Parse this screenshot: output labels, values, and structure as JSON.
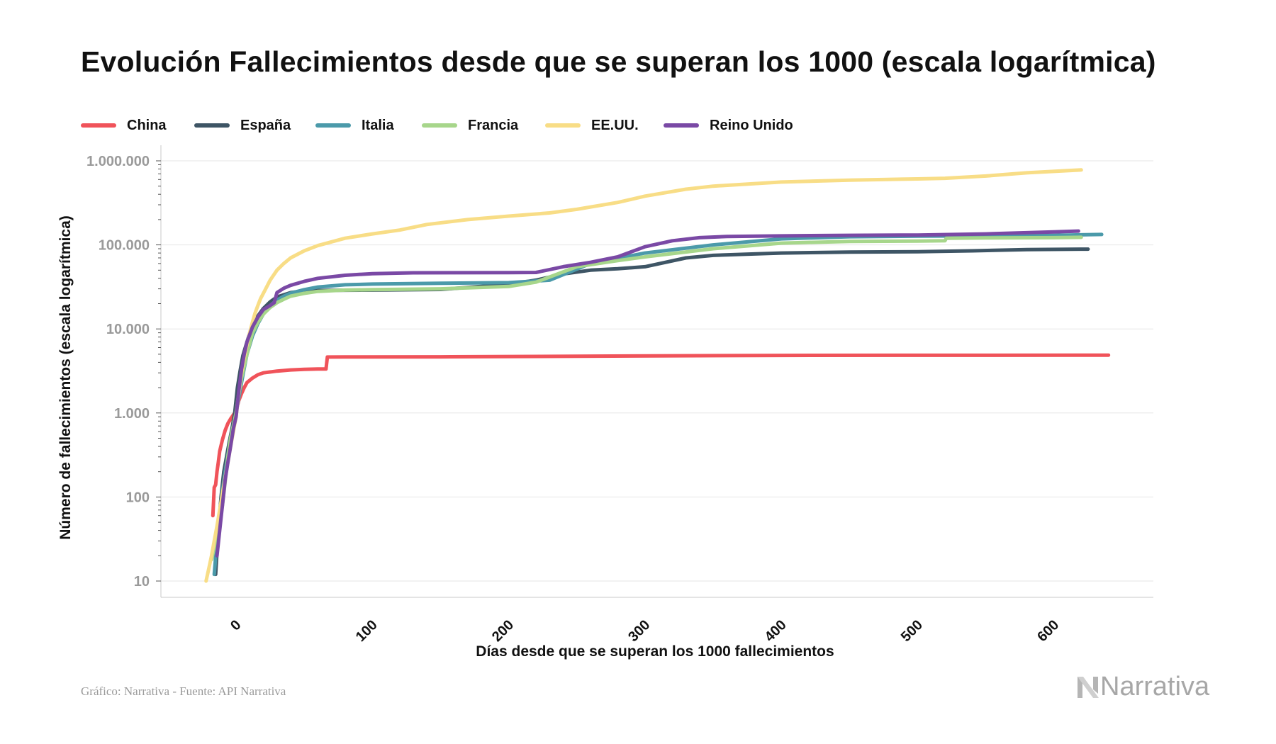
{
  "title": "Evolución Fallecimientos desde que se superan los 1000 (escala logarítmica)",
  "footer": "Gráfico: Narrativa - Fuente: API Narrativa",
  "logo_text": "Narrativa",
  "logo_icon": "narrativa-n-icon",
  "chart_data": {
    "type": "line",
    "xlabel": "Días desde que se superan los 1000 fallecimientos",
    "ylabel": "Número de fallecimientos (escala logarítmica)",
    "yscale": "log",
    "ylim": [
      7,
      1500000
    ],
    "xlim": [
      -55,
      675
    ],
    "xticks": [
      0,
      100,
      200,
      300,
      400,
      500,
      600
    ],
    "xtick_labels": [
      "0",
      "100",
      "200",
      "300",
      "400",
      "500",
      "600"
    ],
    "yticks": [
      10,
      100,
      1000,
      10000,
      100000,
      1000000
    ],
    "ytick_labels": [
      "10",
      "100",
      "1.000",
      "10.000",
      "100.000",
      "1.000.000"
    ],
    "grid": true,
    "legend_position": "top-left",
    "series": [
      {
        "name": "China",
        "color": "#f0535a",
        "x": [
          -17,
          -16,
          -15,
          -14,
          -13,
          -12,
          -10,
          -8,
          -6,
          -4,
          -2,
          0,
          2,
          4,
          6,
          8,
          12,
          16,
          20,
          30,
          40,
          50,
          60,
          66,
          67,
          80,
          150,
          250,
          400,
          500,
          640
        ],
        "y": [
          60,
          130,
          140,
          200,
          260,
          350,
          480,
          620,
          750,
          850,
          950,
          1050,
          1400,
          1700,
          2000,
          2300,
          2600,
          2850,
          3000,
          3150,
          3250,
          3300,
          3330,
          3340,
          4630,
          4640,
          4650,
          4740,
          4840,
          4860,
          4880
        ]
      },
      {
        "name": "España",
        "color": "#3e5565",
        "x": [
          -15,
          -13,
          -11,
          -9,
          -7,
          -5,
          -3,
          -1,
          1,
          3,
          5,
          8,
          11,
          15,
          20,
          25,
          30,
          40,
          50,
          70,
          100,
          150,
          200,
          220,
          240,
          260,
          280,
          300,
          330,
          350,
          380,
          400,
          450,
          500,
          540,
          580,
          625
        ],
        "y": [
          12,
          40,
          100,
          200,
          300,
          450,
          650,
          1000,
          2000,
          3200,
          4800,
          7000,
          10000,
          13500,
          17500,
          21000,
          24000,
          27000,
          28500,
          28800,
          29000,
          29500,
          34000,
          38000,
          45000,
          50000,
          52000,
          55000,
          70000,
          75000,
          78000,
          80000,
          82000,
          83000,
          85000,
          88000,
          89000
        ]
      },
      {
        "name": "Italia",
        "color": "#4b9aaa",
        "x": [
          -16,
          -14,
          -12,
          -10,
          -8,
          -6,
          -4,
          -2,
          0,
          2,
          4,
          6,
          8,
          12,
          16,
          20,
          25,
          30,
          35,
          40,
          50,
          60,
          80,
          100,
          150,
          200,
          230,
          260,
          300,
          350,
          400,
          450,
          500,
          550,
          600,
          635
        ],
        "y": [
          12,
          30,
          60,
          120,
          200,
          320,
          500,
          720,
          1000,
          1500,
          2300,
          3400,
          5000,
          8200,
          11600,
          15000,
          19000,
          22000,
          24500,
          26600,
          29300,
          31500,
          33500,
          34200,
          35000,
          35500,
          38000,
          60000,
          80000,
          100000,
          118000,
          125000,
          127000,
          128000,
          130000,
          133000
        ]
      },
      {
        "name": "Francia",
        "color": "#a7d68b",
        "x": [
          -18,
          -16,
          -14,
          -12,
          -10,
          -8,
          -6,
          -4,
          -2,
          0,
          2,
          4,
          6,
          8,
          12,
          16,
          20,
          25,
          30,
          35,
          40,
          50,
          60,
          80,
          100,
          150,
          200,
          220,
          250,
          280,
          300,
          350,
          400,
          450,
          500,
          520,
          521,
          550,
          600,
          620
        ],
        "y": [
          18,
          25,
          35,
          50,
          80,
          150,
          300,
          500,
          700,
          1000,
          1700,
          2600,
          3600,
          5000,
          8900,
          12000,
          15000,
          18000,
          20500,
          22500,
          24500,
          26500,
          28000,
          29000,
          29300,
          30000,
          32000,
          36000,
          55000,
          65000,
          72000,
          90000,
          105000,
          110000,
          111000,
          112000,
          120000,
          121000,
          122000,
          123000
        ]
      },
      {
        "name": "EE.UU.",
        "color": "#f8dd86",
        "x": [
          -22,
          -20,
          -18,
          -16,
          -14,
          -12,
          -10,
          -8,
          -6,
          -4,
          -2,
          0,
          2,
          4,
          6,
          8,
          10,
          12,
          14,
          16,
          18,
          20,
          25,
          30,
          35,
          40,
          50,
          60,
          80,
          100,
          120,
          140,
          170,
          200,
          230,
          250,
          280,
          300,
          330,
          350,
          400,
          450,
          500,
          520,
          550,
          580,
          620
        ],
        "y": [
          10,
          14,
          20,
          30,
          45,
          70,
          110,
          170,
          260,
          400,
          600,
          900,
          1700,
          3000,
          4500,
          6500,
          9000,
          12000,
          15500,
          19000,
          23000,
          26500,
          38000,
          50000,
          60000,
          70000,
          85000,
          98000,
          120000,
          135000,
          150000,
          175000,
          200000,
          220000,
          240000,
          265000,
          320000,
          380000,
          460000,
          500000,
          560000,
          590000,
          610000,
          620000,
          660000,
          720000,
          780000
        ]
      },
      {
        "name": "Reino Unido",
        "color": "#7a49a5",
        "x": [
          -14,
          -12,
          -10,
          -8,
          -6,
          -4,
          -2,
          0,
          2,
          4,
          6,
          8,
          12,
          16,
          20,
          25,
          28,
          30,
          35,
          40,
          50,
          60,
          80,
          100,
          130,
          160,
          200,
          220,
          240,
          260,
          280,
          300,
          320,
          340,
          360,
          400,
          450,
          500,
          550,
          600,
          618
        ],
        "y": [
          20,
          40,
          80,
          160,
          260,
          400,
          650,
          900,
          1800,
          3300,
          5000,
          7000,
          10500,
          13800,
          17000,
          19000,
          20500,
          27000,
          30500,
          33000,
          36800,
          40000,
          43500,
          45500,
          46500,
          46600,
          46800,
          47000,
          55000,
          62000,
          72000,
          95000,
          112000,
          122000,
          126000,
          128000,
          130000,
          131000,
          135000,
          143000,
          146000
        ]
      }
    ]
  }
}
